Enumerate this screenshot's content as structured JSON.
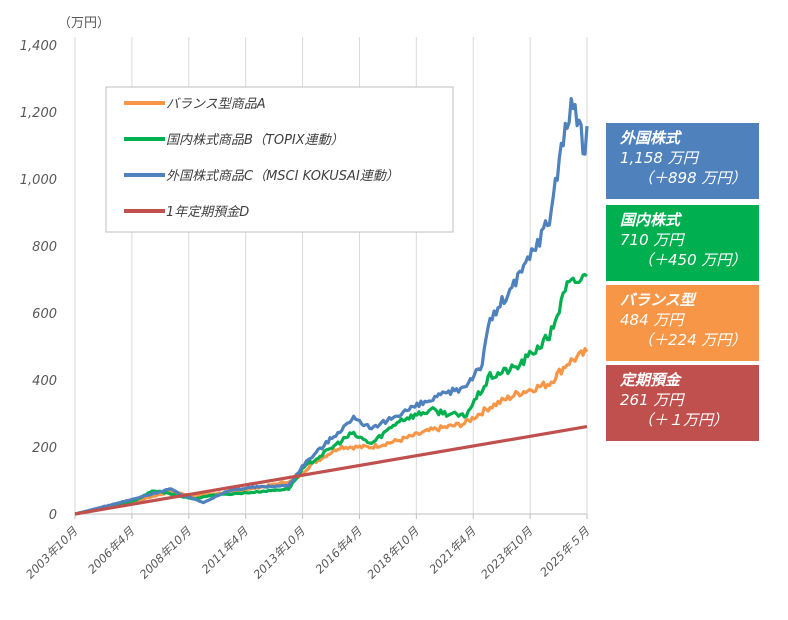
{
  "chart_data": {
    "type": "line",
    "unit_label": "（万円）",
    "ylim": [
      0,
      1400
    ],
    "yticks": [
      "0",
      "200",
      "400",
      "600",
      "800",
      "1,000",
      "1,200",
      "1,400"
    ],
    "xticks": [
      "2003年10月",
      "2006年4月",
      "2008年10月",
      "2011年4月",
      "2013年10月",
      "2016年4月",
      "2018年10月",
      "2021年4月",
      "2023年10月",
      "2025年５月"
    ],
    "grid": "vertical",
    "legend_position": "top-left",
    "series": [
      {
        "name": "バランス型商品A",
        "color": "#F79646",
        "points": [
          [
            "2003-10",
            0
          ],
          [
            "2006-04",
            38
          ],
          [
            "2007-10",
            66
          ],
          [
            "2008-10",
            55
          ],
          [
            "2009-06",
            58
          ],
          [
            "2011-04",
            76
          ],
          [
            "2013-01",
            100
          ],
          [
            "2013-10",
            150
          ],
          [
            "2014-12",
            200
          ],
          [
            "2016-04",
            200
          ],
          [
            "2017-06",
            220
          ],
          [
            "2018-10",
            250
          ],
          [
            "2020-03",
            270
          ],
          [
            "2021-04",
            320
          ],
          [
            "2022-06",
            360
          ],
          [
            "2023-10",
            390
          ],
          [
            "2024-07",
            450
          ],
          [
            "2025-05",
            484
          ]
        ]
      },
      {
        "name": "国内株式商品B（TOPIX連動）",
        "color": "#00B050",
        "points": [
          [
            "2003-10",
            0
          ],
          [
            "2006-04",
            40
          ],
          [
            "2007-02",
            70
          ],
          [
            "2008-10",
            45
          ],
          [
            "2009-06",
            55
          ],
          [
            "2011-04",
            65
          ],
          [
            "2012-10",
            75
          ],
          [
            "2013-06",
            140
          ],
          [
            "2015-06",
            240
          ],
          [
            "2016-04",
            210
          ],
          [
            "2017-06",
            280
          ],
          [
            "2018-10",
            310
          ],
          [
            "2020-03",
            290
          ],
          [
            "2021-04",
            410
          ],
          [
            "2022-06",
            440
          ],
          [
            "2023-10",
            530
          ],
          [
            "2024-07",
            680
          ],
          [
            "2025-05",
            710
          ]
        ]
      },
      {
        "name": "外国株式商品C（MSCI KOKUSAI連動）",
        "color": "#4F81BD",
        "points": [
          [
            "2003-10",
            0
          ],
          [
            "2006-04",
            45
          ],
          [
            "2007-10",
            75
          ],
          [
            "2008-03",
            60
          ],
          [
            "2009-03",
            35
          ],
          [
            "2010-04",
            70
          ],
          [
            "2011-04",
            80
          ],
          [
            "2012-10",
            85
          ],
          [
            "2013-06",
            150
          ],
          [
            "2014-12",
            250
          ],
          [
            "2015-08",
            290
          ],
          [
            "2016-04",
            250
          ],
          [
            "2017-06",
            300
          ],
          [
            "2018-10",
            340
          ],
          [
            "2020-03",
            380
          ],
          [
            "2020-12",
            450
          ],
          [
            "2021-04",
            580
          ],
          [
            "2022-06",
            700
          ],
          [
            "2023-10",
            880
          ],
          [
            "2024-04",
            1100
          ],
          [
            "2024-10",
            1230
          ],
          [
            "2025-04",
            1080
          ],
          [
            "2025-05",
            1158
          ]
        ]
      },
      {
        "name": "1年定期預金D",
        "color": "#C0504D",
        "points": [
          [
            "2003-10",
            0
          ],
          [
            "2025-05",
            261
          ]
        ]
      }
    ],
    "annotations": [
      {
        "title": "外国株式",
        "value": "1,158 万円",
        "gain": "（＋898 万円）",
        "color": "#4F81BD"
      },
      {
        "title": "国内株式",
        "value": "710  万円",
        "gain": "（＋450 万円）",
        "color": "#00B050"
      },
      {
        "title": "バランス型",
        "value": "484 万円",
        "gain": "（＋224 万円）",
        "color": "#F79646"
      },
      {
        "title": "定期預金",
        "value": "261 万円",
        "gain": "（＋１万円）",
        "color": "#C0504D"
      }
    ]
  }
}
